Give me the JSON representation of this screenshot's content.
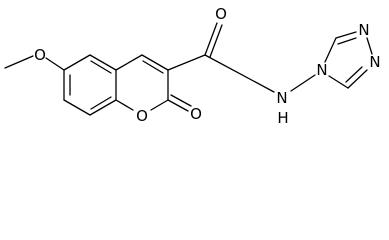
{
  "atoms": [
    {
      "label": "O"
    },
    {
      "label": "O"
    },
    {
      "label": "O"
    },
    {
      "label": "O"
    },
    {
      "label": "N"
    },
    {
      "label": "H"
    },
    {
      "label": "N"
    },
    {
      "label": "N"
    },
    {
      "label": "N"
    }
  ]
}
